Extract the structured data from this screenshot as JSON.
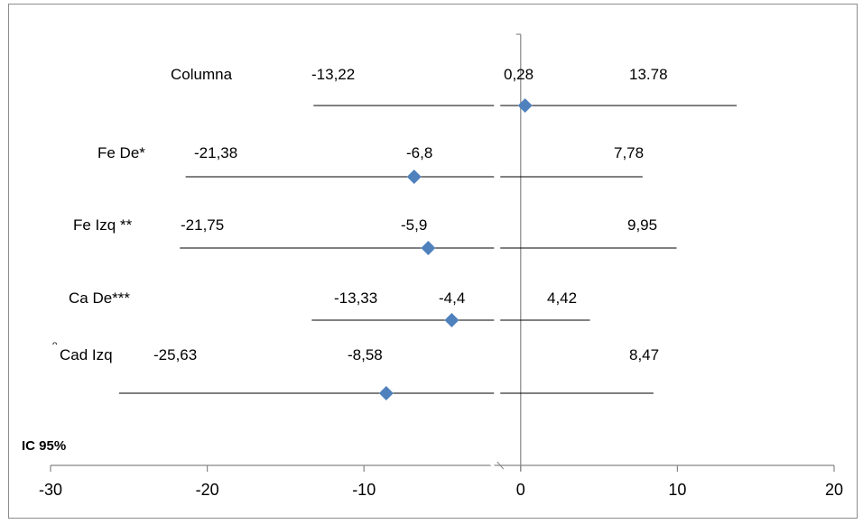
{
  "chart_data": {
    "type": "forest",
    "xlim": [
      -30,
      20
    ],
    "x_ticks": [
      "-30",
      "-20",
      "-10",
      "0",
      "10",
      "20"
    ],
    "x_tick_values": [
      -30,
      -20,
      -10,
      0,
      10,
      20
    ],
    "marker_color": "#4f81bd",
    "axis_color": "#868686",
    "rows": [
      {
        "name": "Columna",
        "lower": -13.22,
        "estimate": 0.28,
        "upper": 13.78,
        "lower_label": "-13,22",
        "estimate_label": "0,28",
        "upper_label": "13.78"
      },
      {
        "name": "Fe  De*",
        "lower": -21.38,
        "estimate": -6.8,
        "upper": 7.78,
        "lower_label": "-21,38",
        "estimate_label": "-6,8",
        "upper_label": "7,78"
      },
      {
        "name": "Fe Izq **",
        "lower": -21.75,
        "estimate": -5.9,
        "upper": 9.95,
        "lower_label": "-21,75",
        "estimate_label": "-5,9",
        "upper_label": "9,95"
      },
      {
        "name": "Ca De***",
        "lower": -13.33,
        "estimate": -4.4,
        "upper": 4.42,
        "lower_label": "-13,33",
        "estimate_label": "-4,4",
        "upper_label": "4,42"
      },
      {
        "name": "Cad Izq",
        "lower": -25.63,
        "estimate": -8.58,
        "upper": 8.47,
        "lower_label": "-25,63",
        "estimate_label": "-8,58",
        "upper_label": "8,47"
      }
    ],
    "footnote": "IC 95%",
    "row_mark": "ᵔ"
  }
}
